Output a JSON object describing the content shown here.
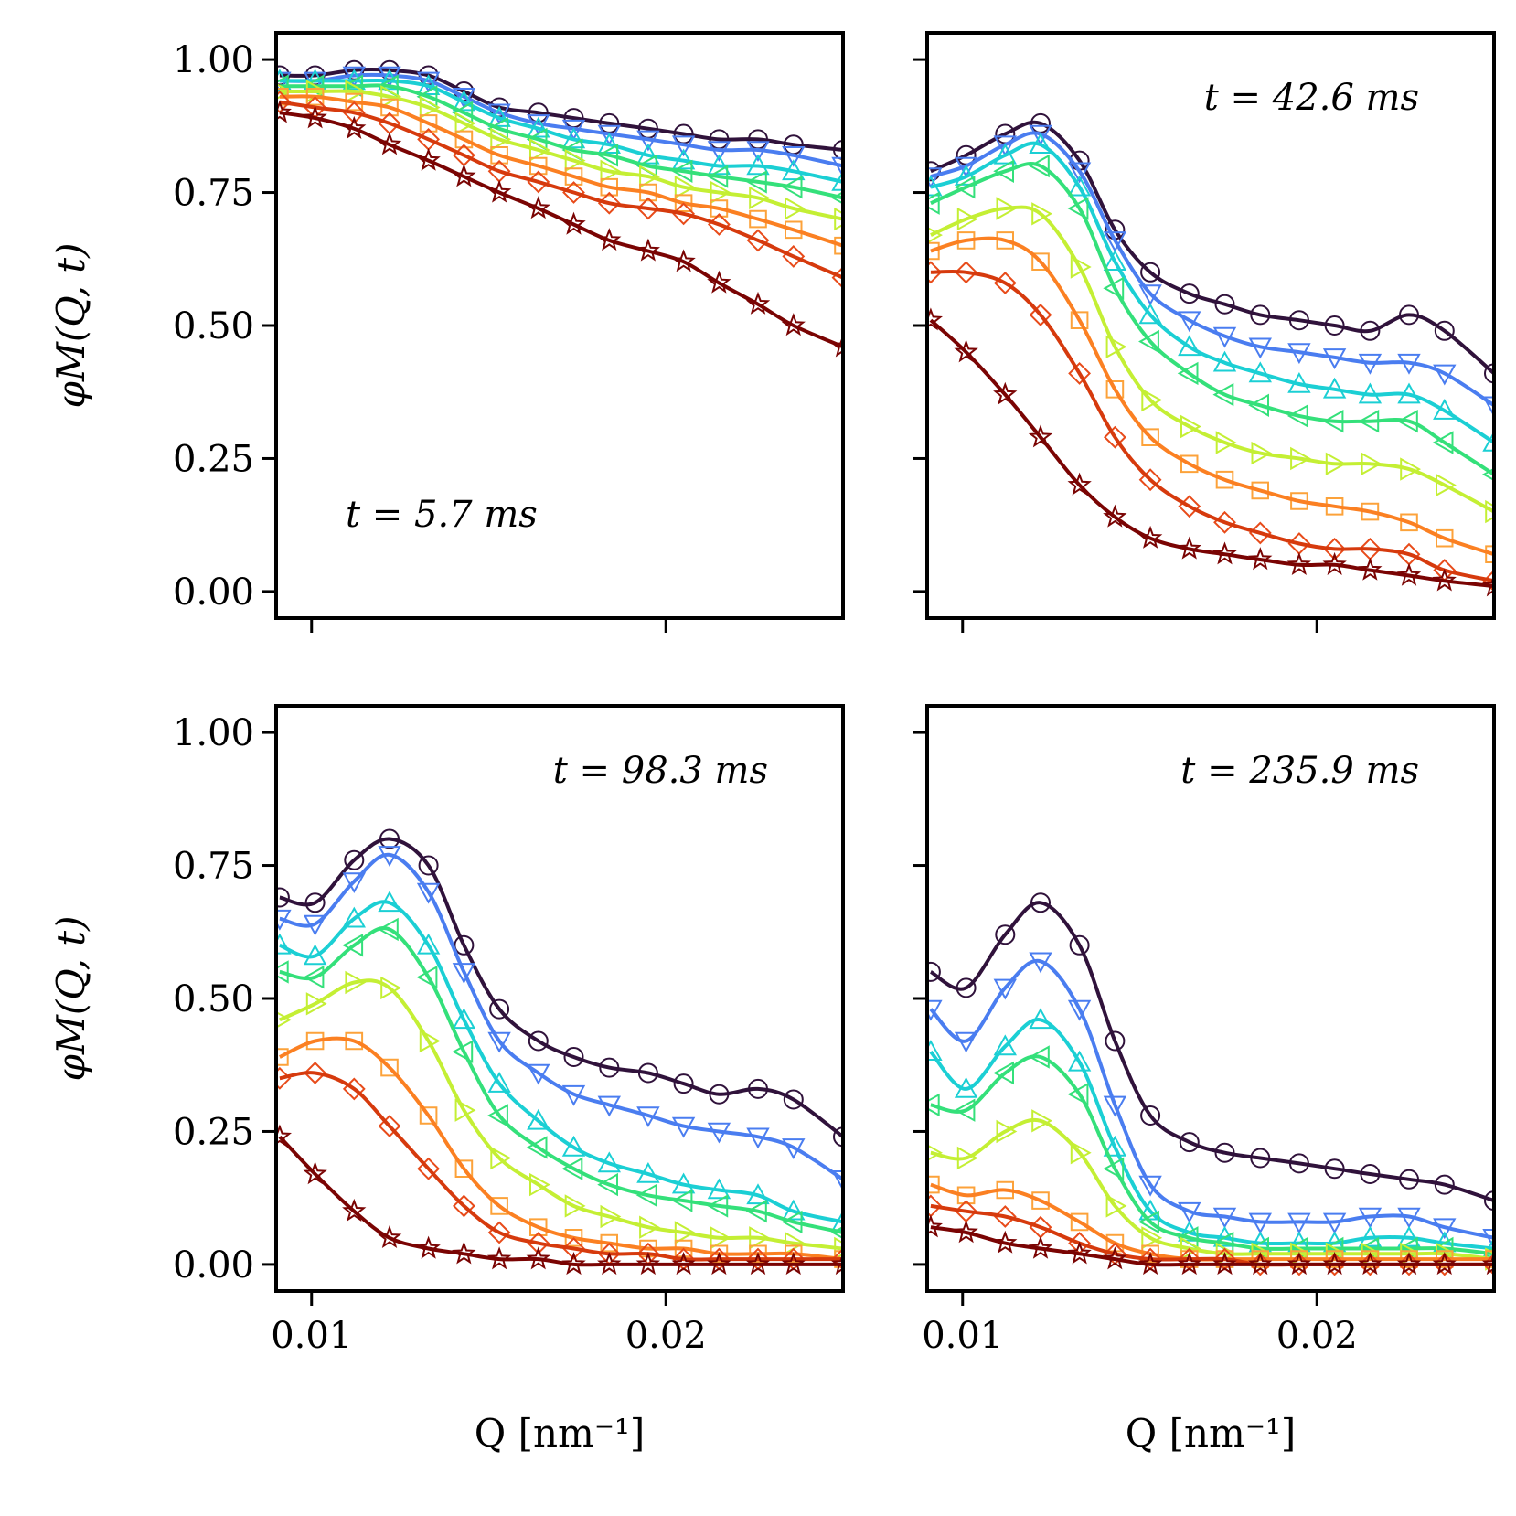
{
  "chart_data": {
    "type": "line",
    "layout": "2x2 grid, shared x and y axes",
    "xlabel": "Q [nm⁻¹]",
    "ylabel": "φM(Q, t)",
    "xlim": [
      0.009,
      0.025
    ],
    "ylim": [
      -0.05,
      1.05
    ],
    "x_ticks": [
      0.01,
      0.02
    ],
    "x_tick_labels": [
      "0.01",
      "0.02"
    ],
    "y_ticks": [
      0.0,
      0.25,
      0.5,
      0.75,
      1.0
    ],
    "y_tick_labels": [
      "0.00",
      "0.25",
      "0.50",
      "0.75",
      "1.00"
    ],
    "x": [
      0.0091,
      0.0101,
      0.0112,
      0.0122,
      0.0133,
      0.0143,
      0.0153,
      0.0164,
      0.0174,
      0.0184,
      0.0195,
      0.0205,
      0.0215,
      0.0226,
      0.0236,
      0.025
    ],
    "series_styles": [
      {
        "marker": "circle",
        "color": "#30123b",
        "fit_color": "#30123b"
      },
      {
        "marker": "triangle-down",
        "color": "#4a7df0",
        "fit_color": "#4a7df0"
      },
      {
        "marker": "triangle-up",
        "color": "#1bcfd4",
        "fit_color": "#1bcfd4"
      },
      {
        "marker": "triangle-left",
        "color": "#34e07a",
        "fit_color": "#34e07a"
      },
      {
        "marker": "triangle-right",
        "color": "#c4ef34",
        "fit_color": "#c4ef34"
      },
      {
        "marker": "square",
        "color": "#fca23a",
        "fit_color": "#fb8022"
      },
      {
        "marker": "diamond",
        "color": "#e84b1a",
        "fit_color": "#d63a0d"
      },
      {
        "marker": "star",
        "color": "#7a0403",
        "fit_color": "#7a0403"
      }
    ],
    "panels": [
      {
        "annotation": "t = 5.7 ms",
        "annotation_position": "bottom-left",
        "series": [
          {
            "values": [
              0.97,
              0.97,
              0.98,
              0.98,
              0.97,
              0.94,
              0.91,
              0.9,
              0.89,
              0.88,
              0.87,
              0.86,
              0.85,
              0.85,
              0.84,
              0.83
            ]
          },
          {
            "values": [
              0.96,
              0.96,
              0.97,
              0.97,
              0.96,
              0.93,
              0.9,
              0.88,
              0.87,
              0.86,
              0.85,
              0.84,
              0.83,
              0.83,
              0.82,
              0.8
            ]
          },
          {
            "values": [
              0.96,
              0.96,
              0.96,
              0.96,
              0.95,
              0.92,
              0.89,
              0.87,
              0.85,
              0.84,
              0.82,
              0.81,
              0.8,
              0.8,
              0.79,
              0.77
            ]
          },
          {
            "values": [
              0.95,
              0.95,
              0.95,
              0.95,
              0.93,
              0.9,
              0.87,
              0.85,
              0.83,
              0.82,
              0.8,
              0.79,
              0.78,
              0.77,
              0.76,
              0.74
            ]
          },
          {
            "values": [
              0.94,
              0.94,
              0.94,
              0.93,
              0.91,
              0.88,
              0.85,
              0.83,
              0.81,
              0.79,
              0.78,
              0.76,
              0.75,
              0.74,
              0.72,
              0.7
            ]
          },
          {
            "values": [
              0.93,
              0.93,
              0.92,
              0.91,
              0.88,
              0.85,
              0.82,
              0.8,
              0.78,
              0.76,
              0.75,
              0.73,
              0.72,
              0.7,
              0.68,
              0.65
            ]
          },
          {
            "values": [
              0.92,
              0.91,
              0.9,
              0.88,
              0.85,
              0.82,
              0.79,
              0.77,
              0.75,
              0.73,
              0.72,
              0.71,
              0.69,
              0.66,
              0.63,
              0.59
            ]
          },
          {
            "values": [
              0.9,
              0.89,
              0.87,
              0.84,
              0.81,
              0.78,
              0.75,
              0.72,
              0.69,
              0.66,
              0.64,
              0.62,
              0.58,
              0.54,
              0.5,
              0.46
            ]
          }
        ]
      },
      {
        "annotation": "t = 42.6 ms",
        "annotation_position": "top-right",
        "series": [
          {
            "values": [
              0.79,
              0.82,
              0.86,
              0.88,
              0.81,
              0.68,
              0.6,
              0.56,
              0.54,
              0.52,
              0.51,
              0.5,
              0.49,
              0.52,
              0.49,
              0.41
            ]
          },
          {
            "values": [
              0.78,
              0.8,
              0.84,
              0.86,
              0.79,
              0.66,
              0.56,
              0.51,
              0.48,
              0.46,
              0.45,
              0.44,
              0.43,
              0.43,
              0.41,
              0.35
            ]
          },
          {
            "values": [
              0.76,
              0.78,
              0.82,
              0.84,
              0.76,
              0.62,
              0.52,
              0.46,
              0.43,
              0.41,
              0.39,
              0.38,
              0.37,
              0.37,
              0.34,
              0.28
            ]
          },
          {
            "values": [
              0.73,
              0.76,
              0.79,
              0.8,
              0.72,
              0.57,
              0.47,
              0.41,
              0.37,
              0.35,
              0.33,
              0.32,
              0.32,
              0.32,
              0.28,
              0.22
            ]
          },
          {
            "values": [
              0.67,
              0.7,
              0.72,
              0.71,
              0.61,
              0.46,
              0.36,
              0.31,
              0.28,
              0.26,
              0.25,
              0.24,
              0.24,
              0.23,
              0.2,
              0.15
            ]
          },
          {
            "values": [
              0.64,
              0.66,
              0.66,
              0.62,
              0.51,
              0.38,
              0.29,
              0.24,
              0.21,
              0.19,
              0.17,
              0.16,
              0.15,
              0.13,
              0.1,
              0.07
            ]
          },
          {
            "values": [
              0.6,
              0.6,
              0.58,
              0.52,
              0.41,
              0.29,
              0.21,
              0.16,
              0.13,
              0.11,
              0.09,
              0.08,
              0.08,
              0.07,
              0.04,
              0.02
            ]
          },
          {
            "values": [
              0.51,
              0.45,
              0.37,
              0.29,
              0.2,
              0.14,
              0.1,
              0.08,
              0.07,
              0.06,
              0.05,
              0.05,
              0.04,
              0.03,
              0.02,
              0.01
            ]
          }
        ]
      },
      {
        "annotation": "t = 98.3 ms",
        "annotation_position": "top-right",
        "series": [
          {
            "values": [
              0.69,
              0.68,
              0.76,
              0.8,
              0.75,
              0.6,
              0.48,
              0.42,
              0.39,
              0.37,
              0.36,
              0.34,
              0.32,
              0.33,
              0.31,
              0.24
            ]
          },
          {
            "values": [
              0.65,
              0.64,
              0.72,
              0.77,
              0.7,
              0.55,
              0.42,
              0.36,
              0.32,
              0.3,
              0.28,
              0.26,
              0.25,
              0.24,
              0.22,
              0.16
            ]
          },
          {
            "values": [
              0.6,
              0.58,
              0.65,
              0.68,
              0.6,
              0.46,
              0.34,
              0.27,
              0.22,
              0.19,
              0.17,
              0.15,
              0.14,
              0.13,
              0.1,
              0.08
            ]
          },
          {
            "values": [
              0.55,
              0.54,
              0.6,
              0.63,
              0.54,
              0.4,
              0.28,
              0.22,
              0.18,
              0.15,
              0.13,
              0.12,
              0.11,
              0.1,
              0.08,
              0.06
            ]
          },
          {
            "values": [
              0.46,
              0.49,
              0.53,
              0.52,
              0.42,
              0.29,
              0.2,
              0.15,
              0.11,
              0.09,
              0.07,
              0.06,
              0.05,
              0.05,
              0.04,
              0.03
            ]
          },
          {
            "values": [
              0.39,
              0.42,
              0.42,
              0.37,
              0.28,
              0.18,
              0.11,
              0.07,
              0.05,
              0.04,
              0.03,
              0.03,
              0.02,
              0.02,
              0.02,
              0.01
            ]
          },
          {
            "values": [
              0.35,
              0.36,
              0.33,
              0.26,
              0.18,
              0.11,
              0.06,
              0.04,
              0.03,
              0.02,
              0.02,
              0.01,
              0.01,
              0.01,
              0.01,
              0.01
            ]
          },
          {
            "values": [
              0.24,
              0.17,
              0.1,
              0.05,
              0.03,
              0.02,
              0.01,
              0.01,
              0.0,
              0.0,
              0.0,
              0.0,
              0.0,
              0.0,
              0.0,
              0.0
            ]
          }
        ]
      },
      {
        "annotation": "t = 235.9 ms",
        "annotation_position": "top-right",
        "series": [
          {
            "values": [
              0.55,
              0.52,
              0.62,
              0.68,
              0.6,
              0.42,
              0.28,
              0.23,
              0.21,
              0.2,
              0.19,
              0.18,
              0.17,
              0.16,
              0.15,
              0.12
            ]
          },
          {
            "values": [
              0.48,
              0.42,
              0.52,
              0.57,
              0.48,
              0.3,
              0.15,
              0.1,
              0.09,
              0.08,
              0.08,
              0.08,
              0.09,
              0.09,
              0.07,
              0.05
            ]
          },
          {
            "values": [
              0.4,
              0.33,
              0.41,
              0.46,
              0.38,
              0.22,
              0.1,
              0.06,
              0.05,
              0.04,
              0.04,
              0.04,
              0.05,
              0.05,
              0.04,
              0.03
            ]
          },
          {
            "values": [
              0.3,
              0.29,
              0.36,
              0.39,
              0.32,
              0.18,
              0.08,
              0.05,
              0.04,
              0.03,
              0.03,
              0.03,
              0.03,
              0.03,
              0.03,
              0.02
            ]
          },
          {
            "values": [
              0.21,
              0.2,
              0.25,
              0.27,
              0.21,
              0.11,
              0.05,
              0.03,
              0.02,
              0.02,
              0.02,
              0.02,
              0.02,
              0.02,
              0.02,
              0.01
            ]
          },
          {
            "values": [
              0.15,
              0.13,
              0.14,
              0.12,
              0.08,
              0.04,
              0.02,
              0.01,
              0.01,
              0.01,
              0.01,
              0.01,
              0.01,
              0.01,
              0.01,
              0.01
            ]
          },
          {
            "values": [
              0.11,
              0.1,
              0.09,
              0.07,
              0.04,
              0.02,
              0.01,
              0.01,
              0.01,
              0.0,
              0.0,
              0.0,
              0.0,
              0.0,
              0.0,
              0.0
            ]
          },
          {
            "values": [
              0.07,
              0.06,
              0.04,
              0.03,
              0.02,
              0.01,
              0.0,
              0.0,
              0.0,
              0.0,
              0.0,
              0.0,
              0.0,
              0.0,
              0.0,
              0.0
            ]
          }
        ]
      }
    ]
  }
}
